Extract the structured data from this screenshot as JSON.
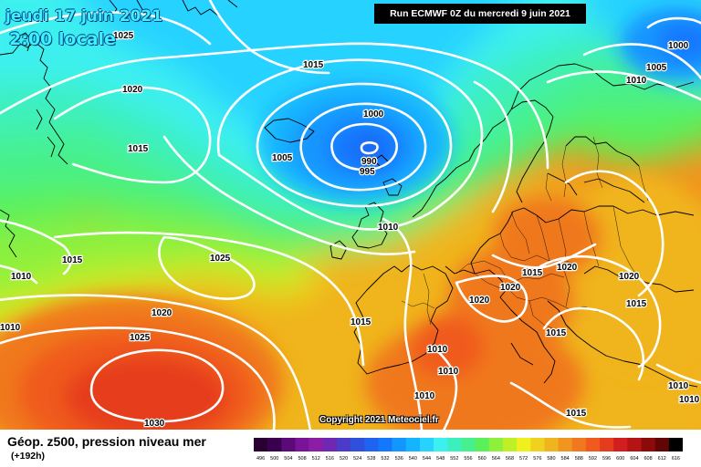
{
  "header": {
    "date": "jeudi 17 juin 2021",
    "time": "2:00 locale",
    "run": "Run ECMWF 0Z du mercredi 9 juin 2021"
  },
  "footer": {
    "copyright": "Copyright 2021 Meteociel.fr",
    "legend_title": "Géop. z500, pression niveau mer",
    "forecast_step": "(+192h)"
  },
  "scale": {
    "ticks": [
      "496",
      "500",
      "504",
      "508",
      "512",
      "516",
      "520",
      "524",
      "528",
      "532",
      "536",
      "540",
      "544",
      "548",
      "552",
      "556",
      "560",
      "564",
      "568",
      "572",
      "576",
      "580",
      "584",
      "588",
      "592",
      "596",
      "600",
      "604",
      "608",
      "612",
      "616"
    ],
    "colors": [
      "#2a0033",
      "#3a0050",
      "#5c0a78",
      "#7a1496",
      "#8c1ea6",
      "#6e28b4",
      "#4a3cc8",
      "#2e50dc",
      "#1e64f0",
      "#1478ff",
      "#1496ff",
      "#14b4ff",
      "#28d2ff",
      "#3cf0f0",
      "#3cf0be",
      "#46f08c",
      "#5af05a",
      "#8cf03c",
      "#bef028",
      "#f0f01e",
      "#f0d21e",
      "#f0b41e",
      "#f0961e",
      "#f0781e",
      "#f05a1e",
      "#e63c1e",
      "#d21e1e",
      "#b41414",
      "#8c0a0a",
      "#640505",
      "#000000"
    ]
  },
  "isobars": [
    {
      "value": "1000",
      "kind": "low"
    },
    {
      "value": "1005",
      "kind": "low"
    },
    {
      "value": "1010",
      "kind": "low"
    },
    {
      "value": "1015",
      "kind": "low"
    },
    {
      "value": "1020",
      "kind": "high"
    },
    {
      "value": "1025",
      "kind": "high"
    },
    {
      "value": "1030",
      "kind": "high"
    },
    {
      "value": "990",
      "kind": "low"
    },
    {
      "value": "995",
      "kind": "low"
    }
  ]
}
